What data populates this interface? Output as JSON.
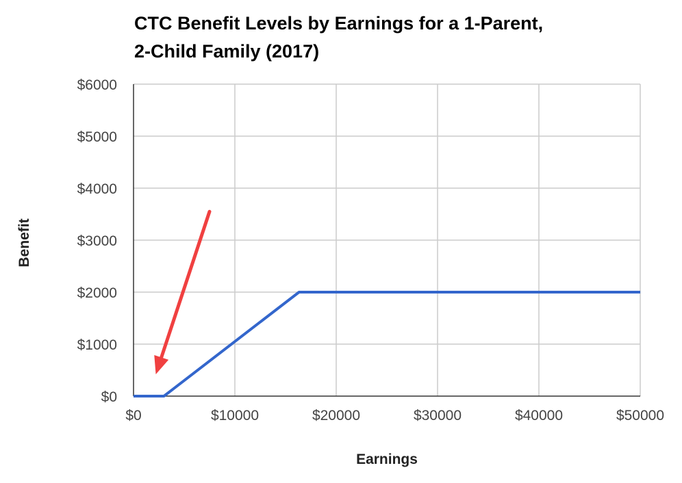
{
  "chart_data": {
    "type": "line",
    "title_lines": [
      "CTC Benefit Levels by Earnings for a 1-Parent,",
      "2-Child Family (2017)"
    ],
    "xlabel": "Earnings",
    "ylabel": "Benefit",
    "xlim": [
      0,
      50000
    ],
    "ylim": [
      0,
      6000
    ],
    "x_ticks": [
      0,
      10000,
      20000,
      30000,
      40000,
      50000
    ],
    "x_tick_labels": [
      "$0",
      "$10000",
      "$20000",
      "$30000",
      "$40000",
      "$50000"
    ],
    "y_ticks": [
      0,
      1000,
      2000,
      3000,
      4000,
      5000,
      6000
    ],
    "y_tick_labels": [
      "$0",
      "$1000",
      "$2000",
      "$3000",
      "$4000",
      "$5000",
      "$6000"
    ],
    "grid": true,
    "series": [
      {
        "color": "#3366cc",
        "points": [
          [
            0,
            0
          ],
          [
            3000,
            0
          ],
          [
            16333,
            2000
          ],
          [
            50000,
            2000
          ]
        ]
      }
    ],
    "annotations": [
      {
        "type": "arrow",
        "color": "#f04040",
        "from": [
          7500,
          3550
        ],
        "to": [
          2200,
          420
        ]
      }
    ]
  }
}
